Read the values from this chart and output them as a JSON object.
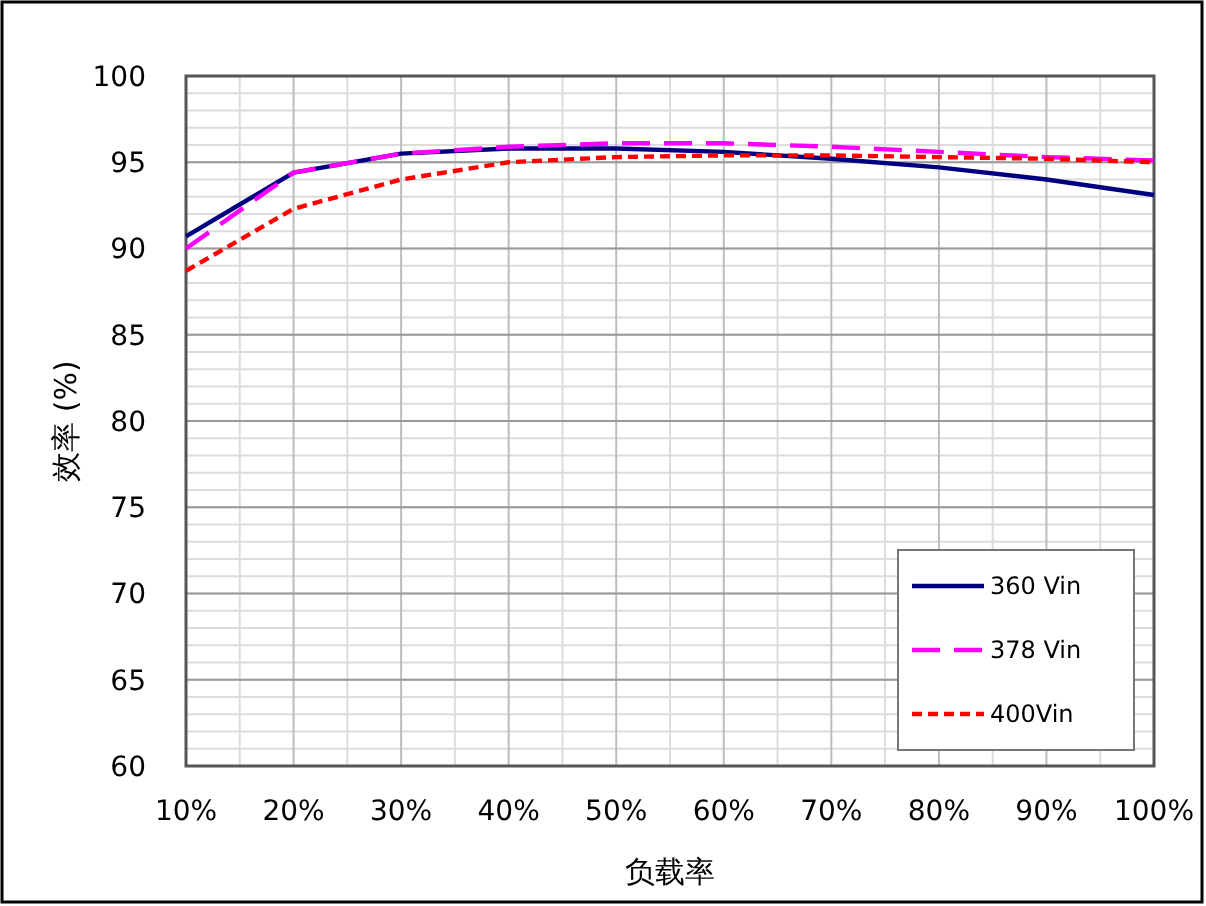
{
  "chart_data": {
    "type": "line",
    "xlabel": "负载率",
    "ylabel": "效率 (%)",
    "x": [
      10,
      20,
      30,
      40,
      50,
      60,
      70,
      80,
      90,
      100
    ],
    "xlim": [
      10,
      100
    ],
    "xticks": [
      {
        "value": 10,
        "label": "10%"
      },
      {
        "value": 20,
        "label": "20%"
      },
      {
        "value": 30,
        "label": "30%"
      },
      {
        "value": 40,
        "label": "40%"
      },
      {
        "value": 50,
        "label": "50%"
      },
      {
        "value": 60,
        "label": "60%"
      },
      {
        "value": 70,
        "label": "70%"
      },
      {
        "value": 80,
        "label": "80%"
      },
      {
        "value": 90,
        "label": "90%"
      },
      {
        "value": 100,
        "label": "100%"
      }
    ],
    "ylim": [
      60,
      100
    ],
    "yticks": [
      60,
      65,
      70,
      75,
      80,
      85,
      90,
      95,
      100
    ],
    "grid": true,
    "legend": "bottom right",
    "series": [
      {
        "name": "360 Vin",
        "color": "#000080",
        "line_style": "solid",
        "values": [
          90.7,
          94.4,
          95.5,
          95.8,
          95.8,
          95.6,
          95.2,
          94.7,
          94.0,
          93.1
        ]
      },
      {
        "name": "378 Vin",
        "color": "#ff00ff",
        "line_style": "dashed",
        "values": [
          90.0,
          94.4,
          95.5,
          95.9,
          96.1,
          96.1,
          95.9,
          95.6,
          95.3,
          95.1
        ]
      },
      {
        "name": "400Vin",
        "color": "#ff0000",
        "line_style": "dotted",
        "values": [
          88.7,
          92.3,
          94.0,
          95.0,
          95.3,
          95.4,
          95.4,
          95.3,
          95.2,
          95.0
        ]
      }
    ]
  }
}
